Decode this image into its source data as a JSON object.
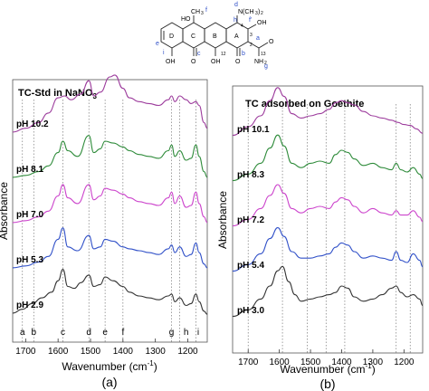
{
  "structure": {
    "labels": {
      "ho": "HO",
      "ch3": "CH",
      "f": "f",
      "d_top": "d",
      "h": "h",
      "n": "N(CH",
      "nsub": "3",
      "nclose": ")",
      "sub3": "3",
      "nme2_sub": "2",
      "fprime": "f'",
      "ring_D": "D",
      "ring_C": "C",
      "ring_B": "B",
      "ring_A": "A",
      "e": "e",
      "i": "i",
      "c": "c",
      "b": "b",
      "a": "a",
      "g": "g",
      "n3": "3",
      "n4": "4",
      "n2": "2",
      "n12": "12",
      "n13": "13",
      "oh_left": "OH",
      "oh_mid": "OH",
      "o_left": "O",
      "o_mid": "O",
      "o_right": "O",
      "oh_right": "OH",
      "nh2": "NH",
      "nh2_sub": "2",
      "h_atom": "H"
    }
  },
  "chart_data": [
    {
      "type": "line",
      "title": "TC-Std in NaNO3",
      "title_main": "TC-Std in NaNO",
      "title_sub": "3",
      "xlabel": "Wavenumber (cm",
      "xlabel_sup": "-1",
      "xlabel_close": ")",
      "ylabel": "Absorbance",
      "panel_label": "(a)",
      "xlim": [
        1740,
        1140
      ],
      "x_ticks": [
        1700,
        1600,
        1500,
        1400,
        1300,
        1200
      ],
      "x_tick_labels": [
        "1700",
        "1600",
        "1500",
        "1400",
        "1300",
        "1200"
      ],
      "band_lines": [
        1710,
        1675,
        1585,
        1505,
        1455,
        1400,
        1250,
        1225,
        1175
      ],
      "band_labels": [
        {
          "x": 1710,
          "label": "a"
        },
        {
          "x": 1675,
          "label": "b"
        },
        {
          "x": 1585,
          "label": "c"
        },
        {
          "x": 1505,
          "label": "d"
        },
        {
          "x": 1455,
          "label": "e"
        },
        {
          "x": 1400,
          "label": "f"
        },
        {
          "x": 1250,
          "label": "g"
        },
        {
          "x": 1205,
          "label": "h"
        },
        {
          "x": 1168,
          "label": "i"
        }
      ],
      "series": [
        {
          "name": "pH 10.2",
          "color": "#9c3b9c",
          "offset": 4,
          "x": [
            1740,
            1700,
            1660,
            1630,
            1600,
            1580,
            1560,
            1530,
            1505,
            1490,
            1470,
            1440,
            1425,
            1400,
            1380,
            1350,
            1320,
            1290,
            1260,
            1250,
            1240,
            1225,
            1205,
            1190,
            1175,
            1165,
            1150,
            1140
          ],
          "y": [
            0.05,
            0.15,
            0.3,
            0.55,
            0.95,
            1.0,
            0.9,
            1.05,
            1.4,
            1.0,
            1.1,
            1.5,
            1.55,
            1.2,
            0.95,
            0.85,
            0.8,
            0.75,
            0.9,
            1.0,
            0.85,
            1.0,
            0.9,
            0.8,
            0.85,
            0.75,
            0.3,
            0.15
          ]
        },
        {
          "name": "pH 8.1",
          "color": "#2e8b3a",
          "offset": 3,
          "x": [
            1740,
            1700,
            1660,
            1630,
            1600,
            1585,
            1570,
            1540,
            1505,
            1490,
            1470,
            1455,
            1430,
            1400,
            1380,
            1350,
            1320,
            1290,
            1260,
            1250,
            1240,
            1225,
            1205,
            1190,
            1175,
            1165,
            1150,
            1140
          ],
          "y": [
            0.05,
            0.1,
            0.2,
            0.35,
            0.7,
            1.0,
            0.75,
            0.6,
            1.15,
            0.7,
            0.8,
            1.0,
            0.95,
            0.85,
            0.75,
            0.65,
            0.6,
            0.55,
            0.75,
            0.9,
            0.6,
            0.75,
            0.5,
            0.55,
            0.9,
            0.6,
            0.2,
            0.05
          ]
        },
        {
          "name": "pH 7.0",
          "color": "#cc44cc",
          "offset": 2,
          "x": [
            1740,
            1700,
            1660,
            1630,
            1600,
            1585,
            1570,
            1540,
            1505,
            1490,
            1470,
            1455,
            1430,
            1400,
            1380,
            1350,
            1320,
            1290,
            1260,
            1250,
            1240,
            1225,
            1205,
            1190,
            1175,
            1165,
            1150,
            1140
          ],
          "y": [
            0.05,
            0.1,
            0.2,
            0.35,
            0.75,
            1.05,
            0.7,
            0.55,
            1.05,
            0.65,
            0.75,
            0.95,
            0.9,
            0.8,
            0.7,
            0.6,
            0.55,
            0.5,
            0.7,
            0.85,
            0.55,
            0.75,
            0.45,
            0.5,
            0.85,
            0.55,
            0.2,
            0.05
          ]
        },
        {
          "name": "pH 5.3",
          "color": "#3050c8",
          "offset": 1,
          "x": [
            1740,
            1700,
            1660,
            1630,
            1600,
            1585,
            1570,
            1540,
            1505,
            1490,
            1470,
            1455,
            1430,
            1400,
            1380,
            1350,
            1320,
            1290,
            1260,
            1250,
            1240,
            1225,
            1205,
            1190,
            1175,
            1165,
            1150,
            1140
          ],
          "y": [
            0.05,
            0.1,
            0.2,
            0.35,
            0.8,
            1.1,
            0.6,
            0.5,
            0.9,
            0.55,
            0.6,
            0.8,
            0.75,
            0.6,
            0.55,
            0.5,
            0.45,
            0.4,
            0.55,
            0.65,
            0.45,
            0.6,
            0.35,
            0.4,
            0.7,
            0.45,
            0.15,
            0.05
          ]
        },
        {
          "name": "pH 2.9",
          "color": "#333333",
          "offset": 0,
          "x": [
            1740,
            1710,
            1680,
            1650,
            1620,
            1600,
            1585,
            1570,
            1550,
            1530,
            1505,
            1490,
            1470,
            1455,
            1430,
            1400,
            1380,
            1350,
            1320,
            1290,
            1260,
            1250,
            1240,
            1225,
            1205,
            1190,
            1175,
            1165,
            1150,
            1140
          ],
          "y": [
            0.05,
            0.15,
            0.3,
            0.45,
            0.6,
            0.9,
            1.2,
            0.75,
            0.7,
            0.85,
            1.05,
            0.75,
            0.8,
            1.0,
            0.9,
            0.75,
            0.6,
            0.5,
            0.45,
            0.4,
            0.5,
            0.55,
            0.35,
            0.45,
            0.25,
            0.3,
            0.55,
            0.35,
            0.1,
            0.02
          ]
        }
      ]
    },
    {
      "type": "line",
      "title": "TC adsorbed on Goethite",
      "xlabel": "Wavenumber (cm",
      "xlabel_sup": "-1",
      "xlabel_close": ")",
      "ylabel": "Absorbance",
      "panel_label": "(b)",
      "xlim": [
        1750,
        1140
      ],
      "x_ticks": [
        1700,
        1600,
        1500,
        1400,
        1300,
        1200
      ],
      "x_tick_labels": [
        "1700",
        "1600",
        "1500",
        "1400",
        "1300",
        "1200"
      ],
      "band_lines": [
        1700,
        1590,
        1510,
        1450,
        1390,
        1225,
        1180
      ],
      "series": [
        {
          "name": "pH 10.1",
          "color": "#9c3b9c",
          "offset": 4,
          "x": [
            1750,
            1700,
            1660,
            1630,
            1605,
            1585,
            1560,
            1530,
            1500,
            1470,
            1440,
            1420,
            1400,
            1380,
            1360,
            1330,
            1300,
            1270,
            1240,
            1220,
            1200,
            1180,
            1160,
            1140
          ],
          "y": [
            0.05,
            0.25,
            0.5,
            0.85,
            1.15,
            0.95,
            0.55,
            0.45,
            0.5,
            0.55,
            0.65,
            0.8,
            0.85,
            0.8,
            0.75,
            0.6,
            0.5,
            0.45,
            0.4,
            0.35,
            0.3,
            0.28,
            0.2,
            0.1
          ]
        },
        {
          "name": "pH 8.3",
          "color": "#2e8b3a",
          "offset": 3,
          "x": [
            1750,
            1700,
            1660,
            1630,
            1605,
            1585,
            1560,
            1530,
            1500,
            1470,
            1440,
            1420,
            1400,
            1380,
            1360,
            1330,
            1300,
            1270,
            1240,
            1225,
            1210,
            1190,
            1170,
            1150,
            1140
          ],
          "y": [
            0.05,
            0.2,
            0.45,
            0.8,
            1.1,
            0.85,
            0.45,
            0.35,
            0.45,
            0.5,
            0.45,
            0.65,
            0.75,
            0.7,
            0.55,
            0.4,
            0.45,
            0.35,
            0.3,
            0.45,
            0.3,
            0.25,
            0.35,
            0.2,
            0.1
          ]
        },
        {
          "name": "pH 7.2",
          "color": "#cc44cc",
          "offset": 2,
          "x": [
            1750,
            1700,
            1660,
            1630,
            1605,
            1585,
            1560,
            1530,
            1500,
            1470,
            1440,
            1420,
            1400,
            1380,
            1360,
            1330,
            1300,
            1270,
            1240,
            1225,
            1210,
            1190,
            1170,
            1150,
            1140
          ],
          "y": [
            0.05,
            0.2,
            0.45,
            0.75,
            1.0,
            0.8,
            0.45,
            0.35,
            0.45,
            0.5,
            0.45,
            0.6,
            0.7,
            0.65,
            0.5,
            0.35,
            0.45,
            0.35,
            0.3,
            0.4,
            0.3,
            0.3,
            0.4,
            0.25,
            0.15
          ]
        },
        {
          "name": "pH 5.4",
          "color": "#3050c8",
          "offset": 1,
          "x": [
            1750,
            1700,
            1660,
            1630,
            1605,
            1585,
            1560,
            1530,
            1500,
            1470,
            1440,
            1420,
            1400,
            1380,
            1360,
            1330,
            1300,
            1270,
            1240,
            1225,
            1210,
            1190,
            1170,
            1150,
            1140
          ],
          "y": [
            0.05,
            0.2,
            0.45,
            0.8,
            1.05,
            0.85,
            0.5,
            0.35,
            0.35,
            0.4,
            0.45,
            0.6,
            0.7,
            0.65,
            0.5,
            0.35,
            0.4,
            0.35,
            0.3,
            0.5,
            0.3,
            0.25,
            0.45,
            0.3,
            0.15
          ]
        },
        {
          "name": "pH 3.0",
          "color": "#333333",
          "offset": 0,
          "x": [
            1750,
            1700,
            1660,
            1630,
            1605,
            1590,
            1570,
            1550,
            1530,
            1500,
            1470,
            1440,
            1420,
            1400,
            1380,
            1360,
            1330,
            1300,
            1270,
            1240,
            1225,
            1210,
            1190,
            1170,
            1150,
            1140
          ],
          "y": [
            0.05,
            0.2,
            0.45,
            0.75,
            1.1,
            1.2,
            0.85,
            0.55,
            0.4,
            0.45,
            0.5,
            0.55,
            0.6,
            0.75,
            0.7,
            0.5,
            0.4,
            0.45,
            0.55,
            0.7,
            0.75,
            0.6,
            0.5,
            0.55,
            0.45,
            0.3
          ]
        }
      ]
    }
  ]
}
